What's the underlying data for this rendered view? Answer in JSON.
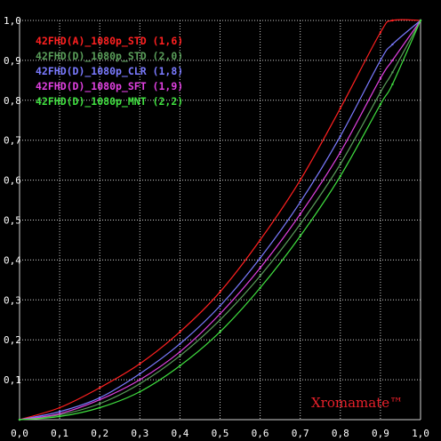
{
  "chart_data": {
    "type": "line",
    "xlim": [
      0,
      1
    ],
    "ylim": [
      0,
      1
    ],
    "grid": true,
    "legend_position": "top-left",
    "x_ticks": [
      {
        "value": 0.0,
        "label": "0,0"
      },
      {
        "value": 0.1,
        "label": "0,1"
      },
      {
        "value": 0.2,
        "label": "0,2"
      },
      {
        "value": 0.3,
        "label": "0,3"
      },
      {
        "value": 0.4,
        "label": "0,4"
      },
      {
        "value": 0.5,
        "label": "0,5"
      },
      {
        "value": 0.6,
        "label": "0,6"
      },
      {
        "value": 0.7,
        "label": "0,7"
      },
      {
        "value": 0.8,
        "label": "0,8"
      },
      {
        "value": 0.9,
        "label": "0,9"
      },
      {
        "value": 1.0,
        "label": "1,0"
      }
    ],
    "y_ticks": [
      {
        "value": 0.1,
        "label": "0,1"
      },
      {
        "value": 0.2,
        "label": "0,2"
      },
      {
        "value": 0.3,
        "label": "0,3"
      },
      {
        "value": 0.4,
        "label": "0,4"
      },
      {
        "value": 0.5,
        "label": "0,5"
      },
      {
        "value": 0.6,
        "label": "0,6"
      },
      {
        "value": 0.7,
        "label": "0,7"
      },
      {
        "value": 0.8,
        "label": "0,8"
      },
      {
        "value": 0.9,
        "label": "0,9"
      },
      {
        "value": 1.0,
        "label": "1,0"
      }
    ],
    "x": [
      0.0,
      0.1,
      0.2,
      0.3,
      0.4,
      0.5,
      0.6,
      0.7,
      0.8,
      0.9,
      0.93,
      1.0
    ],
    "series": [
      {
        "name": "42FHD(A)_1080p_STD (1,6)",
        "color": "#ff2020",
        "values": [
          0.0,
          0.03,
          0.08,
          0.14,
          0.22,
          0.32,
          0.45,
          0.6,
          0.78,
          0.97,
          1.0,
          1.0
        ]
      },
      {
        "name": "42FHD(D)_1080p_STD (2,0)",
        "color": "#5a9e5a",
        "values": [
          0.0,
          0.012,
          0.04,
          0.09,
          0.16,
          0.25,
          0.36,
          0.49,
          0.64,
          0.82,
          0.87,
          1.0
        ]
      },
      {
        "name": "42FHD(D)_1080p_CLR (1,8)",
        "color": "#7a7aff",
        "values": [
          0.0,
          0.02,
          0.055,
          0.115,
          0.19,
          0.285,
          0.405,
          0.545,
          0.71,
          0.9,
          0.94,
          1.0
        ]
      },
      {
        "name": "42FHD(D)_1080p_SFT (1,9)",
        "color": "#e040e0",
        "values": [
          0.0,
          0.015,
          0.05,
          0.1,
          0.17,
          0.265,
          0.38,
          0.515,
          0.67,
          0.855,
          0.9,
          1.0
        ]
      },
      {
        "name": "42FHD(D)_1080p_MNT (2,2)",
        "color": "#40e040",
        "values": [
          0.0,
          0.008,
          0.03,
          0.07,
          0.135,
          0.22,
          0.33,
          0.46,
          0.61,
          0.79,
          0.84,
          1.0
        ]
      }
    ],
    "watermark": "Xromamate™"
  }
}
